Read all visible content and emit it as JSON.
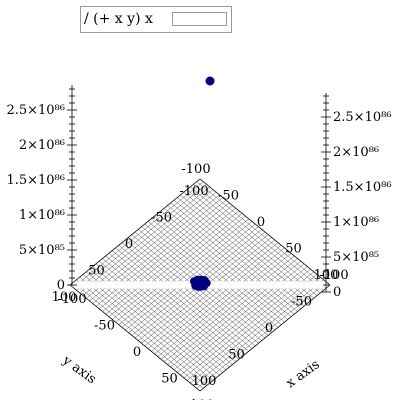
{
  "legend": {
    "label": "/ (+ x y) x"
  },
  "chart_data": {
    "type": "scatter",
    "plot_kind": "3d-surface",
    "xlabel": "x axis",
    "ylabel": "y axis",
    "xlim": [
      -100,
      100
    ],
    "ylim": [
      -100,
      100
    ],
    "zlim": [
      0,
      2.8e+86
    ],
    "x_ticks": [
      "-100",
      "-50",
      "0",
      "50",
      "100"
    ],
    "y_ticks": [
      "100",
      "50",
      "0",
      "-50",
      "-100"
    ],
    "z_ticks": [
      "0",
      "5×10⁸⁵",
      "1×10⁸⁶",
      "1.5×10⁸⁶",
      "2×10⁸⁶",
      "2.5×10⁸⁶"
    ],
    "outlier_point": {
      "x": 0,
      "y": 0,
      "z": 2.8e+86
    },
    "surface_color": "#000000",
    "point_color": "#000080",
    "grid": true
  }
}
